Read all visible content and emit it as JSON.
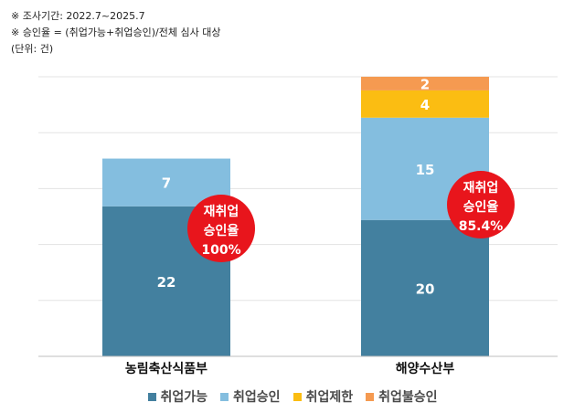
{
  "notes": [
    "※ 조사기간: 2022.7~2025.7",
    "※ 승인율 = (취업가능+취업승인)/전체 심사 대상",
    "(단위: 건)"
  ],
  "chart_data": {
    "type": "bar",
    "stacked": true,
    "categories": [
      "농림축산식품부",
      "해양수산부"
    ],
    "series": [
      {
        "name": "취업가능",
        "values": [
          22,
          20
        ],
        "color": "#43809f"
      },
      {
        "name": "취업승인",
        "values": [
          7,
          15
        ],
        "color": "#84bedf"
      },
      {
        "name": "취업제한",
        "values": [
          0,
          4
        ],
        "color": "#fbbd12"
      },
      {
        "name": "취업불승인",
        "values": [
          0,
          2
        ],
        "color": "#f59a51"
      }
    ],
    "ylim": [
      0,
      41
    ],
    "grid": true,
    "legend": "bottom",
    "annotations": [
      {
        "category": "농림축산식품부",
        "lines": [
          "재취업",
          "승인율",
          "100%"
        ]
      },
      {
        "category": "해양수산부",
        "lines": [
          "재취업",
          "승인율",
          "85.4%"
        ]
      }
    ],
    "annotation_color": "#e8151c"
  }
}
